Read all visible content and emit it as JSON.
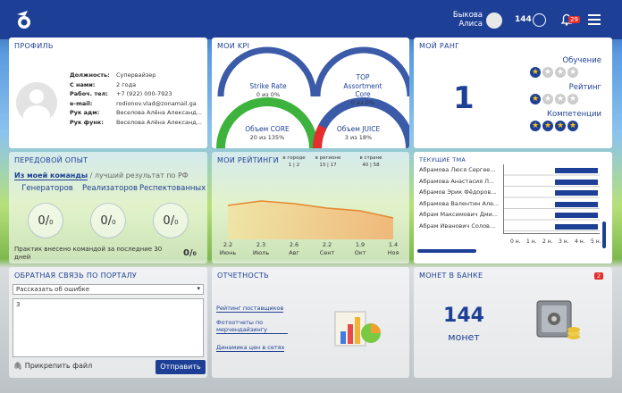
{
  "header": {
    "user_line1": "Быкова",
    "user_line2": "Алиса",
    "coins": "144",
    "notifications": "29"
  },
  "profile": {
    "title": "ПРОФИЛЬ",
    "fields": [
      {
        "label": "Должность:",
        "value": "Супервайзер"
      },
      {
        "label": "С нами:",
        "value": "2 года"
      },
      {
        "label": "Рабоч. тел:",
        "value": "+7 (922) 000-7923"
      },
      {
        "label": "e-mail:",
        "value": "rodionov.vlad@zonamail.ga"
      },
      {
        "label": "Рук адм:",
        "value": "Веселова Алёна Александ..."
      },
      {
        "label": "Рук функ:",
        "value": "Веселова Алёна Александ..."
      }
    ]
  },
  "kpi": {
    "title": "МОИ KPI",
    "items": [
      {
        "name": "Strike Rate",
        "value": "0 из 0%",
        "fill": 0
      },
      {
        "name": "TOP Assortment Core",
        "value": "0 из 0%",
        "fill": 0
      },
      {
        "name": "Объем CORE",
        "value": "20 из 135%",
        "fill": 1
      },
      {
        "name": "Объем JUICE",
        "value": "3 из 18%",
        "fill": 0.18
      }
    ]
  },
  "rank": {
    "title": "МОЙ РАНГ",
    "value": "1",
    "cats": [
      {
        "name": "Обучение",
        "stars": 1
      },
      {
        "name": "Рейтинг",
        "stars": 1
      },
      {
        "name": "Компетенции",
        "stars": 4
      }
    ]
  },
  "experience": {
    "title": "ПЕРЕДОВОЙ ОПЫТ",
    "tab_active": "Из моей команды",
    "tab_other": "/ лучший результат по РФ",
    "cols": [
      "Генераторов",
      "Реализаторов",
      "Респектованных"
    ],
    "num": "0",
    "den": "0",
    "footer": "Практик внесено командой за последние 30 дней",
    "footer_num": "0",
    "footer_den": "0"
  },
  "rating": {
    "title": "МОИ РЕЙТИНГИ",
    "h_city": "в городе",
    "h_region": "в регионе",
    "h_country": "в стране",
    "v_city": "1 | 2",
    "v_region": "13 | 17",
    "v_country": "40 | 58",
    "x_vals": [
      "2.2",
      "2.3",
      "2.6",
      "2.2",
      "1.9",
      "1.4"
    ],
    "x_months": [
      "Июнь",
      "Июль",
      "Авг",
      "Сент",
      "Окт",
      "Ноя"
    ]
  },
  "tma": {
    "title": "ТЕКУЩИЕ ТМА",
    "rows": [
      "Абрамова Люся Сергее...",
      "Абрамова Анастасия Л...",
      "Абрамов Эрик Фёдоров...",
      "Абрамова Валентин Але...",
      "Абрам Максимович Дми...",
      "Абрам Иванович Солов..."
    ],
    "ticks": [
      "0 н.",
      "1 н.",
      "2 н.",
      "3 н.",
      "4 н.",
      "5 н."
    ]
  },
  "feedback": {
    "title": "ОБРАТНАЯ СВЯЗЬ ПО ПОРТАЛУ",
    "select": "Рассказать об ошибке",
    "text": "3",
    "attach": "Прикрепить файл",
    "send": "Отправить"
  },
  "reports": {
    "title": "ОТЧЕТНОСТЬ",
    "links": [
      "Рейтинг поставщиков",
      "Фотоотчеты по мерчендайзингу",
      "Динамика цен в сетях"
    ]
  },
  "bank": {
    "title": "МОНЕТ В БАНКЕ",
    "badge": "2",
    "amount": "144",
    "unit": "монет"
  },
  "colors": {
    "brand": "#1d3f95",
    "green": "#3db33d",
    "red": "#e62d2d"
  }
}
